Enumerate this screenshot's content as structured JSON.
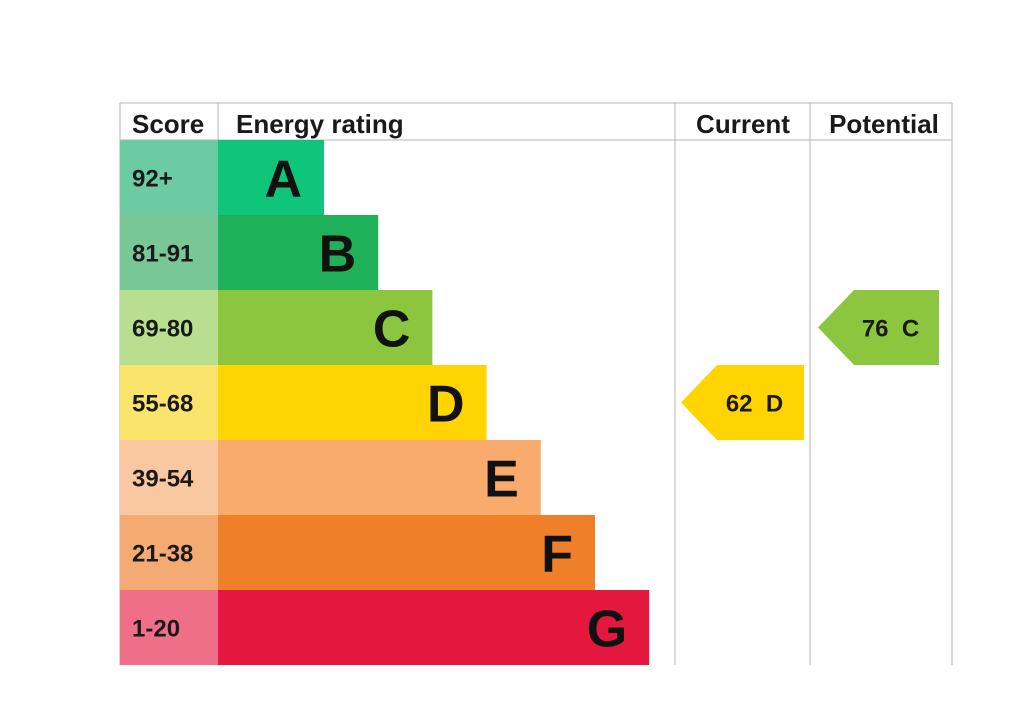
{
  "headers": {
    "score": "Score",
    "energy_rating": "Energy rating",
    "current": "Current",
    "potential": "Potential"
  },
  "chart_data": {
    "type": "bar",
    "bands": [
      {
        "letter": "A",
        "range": "92+",
        "color": "#0fc57a",
        "score_bg": "#6ccba3"
      },
      {
        "letter": "B",
        "range": "81-91",
        "color": "#1fb05a",
        "score_bg": "#79c796"
      },
      {
        "letter": "C",
        "range": "69-80",
        "color": "#8cc63f",
        "score_bg": "#b8de8f"
      },
      {
        "letter": "D",
        "range": "55-68",
        "color": "#ffd400",
        "score_bg": "#fbe46c"
      },
      {
        "letter": "E",
        "range": "39-54",
        "color": "#f8ab6c",
        "score_bg": "#f9c8a0"
      },
      {
        "letter": "F",
        "range": "21-38",
        "color": "#ef7f29",
        "score_bg": "#f3aa73"
      },
      {
        "letter": "G",
        "range": "1-20",
        "color": "#e4173e",
        "score_bg": "#ee6f87"
      }
    ],
    "current": {
      "value": 62,
      "band": "D",
      "label": "62  D",
      "color": "#ffd400"
    },
    "potential": {
      "value": 76,
      "band": "C",
      "label": "76  C",
      "color": "#8cc63f"
    }
  }
}
